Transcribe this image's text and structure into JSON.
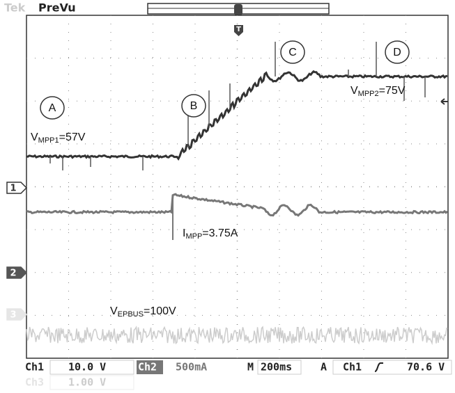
{
  "header": {
    "brand": "Tek",
    "mode": "PreVu",
    "trigger": "T"
  },
  "regions": [
    "A",
    "B",
    "C",
    "D"
  ],
  "channel_markers": [
    "1",
    "2",
    "3"
  ],
  "annotations": [
    {
      "main": "V",
      "sub": "MPP1",
      "rest": "=57V"
    },
    {
      "main": "V",
      "sub": "MPP2",
      "rest": "=75V"
    },
    {
      "main": "I",
      "sub": "MPP",
      "rest": "=3.75A"
    },
    {
      "main": "V",
      "sub": "EPBUS",
      "rest": "=100V"
    }
  ],
  "status": {
    "ch1": "Ch1",
    "ch1_scale": "10.0 V",
    "ch2": "Ch2",
    "ch2_scale": "500mA",
    "m": "M",
    "timebase": "200ms",
    "a": "A",
    "trig_ch": "Ch1",
    "trig_level": "70.6 V",
    "ch3": "Ch3",
    "ch3_scale": "1.00 V"
  }
}
